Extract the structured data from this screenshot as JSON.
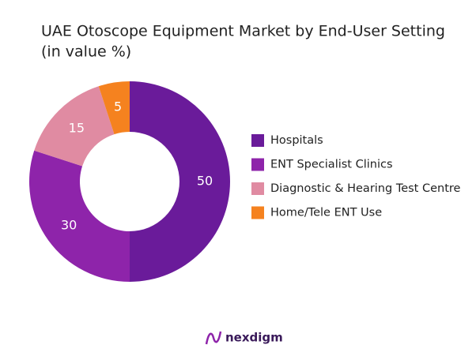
{
  "chart_data": {
    "type": "donut",
    "title": "UAE Otoscope Equipment Market by End-User Setting",
    "subtitle": "(in value %)",
    "categories": [
      "Hospitals",
      "ENT Specialist Clinics",
      "Diagnostic & Hearing Test Centre",
      "Home/Tele ENT Use"
    ],
    "values": [
      50,
      30,
      15,
      5
    ],
    "colors": [
      "#6a1b9a",
      "#8e24aa",
      "#e08ba2",
      "#f5821f"
    ],
    "legend": "right"
  },
  "brand": "nexdigm"
}
